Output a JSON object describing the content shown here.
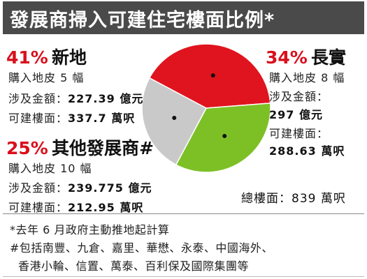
{
  "title": "發展商掃入可建住宅樓面比例*",
  "colors": {
    "header_bg": "#4a4a4a",
    "accent_red": "#d9101c",
    "slice_sun_hung_kai": "#e0141e",
    "slice_cheung_kong": "#7dc026",
    "slice_others": "#c9c9c9"
  },
  "chart_data": {
    "type": "pie",
    "slices": [
      {
        "label": "新地",
        "value": 41,
        "color": "#e0141e"
      },
      {
        "label": "長實",
        "value": 34,
        "color": "#7dc026"
      },
      {
        "label": "其他發展商#",
        "value": 25,
        "color": "#c9c9c9"
      }
    ]
  },
  "groups": {
    "shk": {
      "pct": "41%",
      "name": "新地",
      "sites": "購入地皮 5 幅",
      "amount_label": "涉及金額：",
      "amount_value": "227.39 億元",
      "gfa_label": "可建樓面：",
      "gfa_value": "337.7 萬呎"
    },
    "ck": {
      "pct": "34%",
      "name": "長實",
      "sites": "購入地皮 8 幅",
      "amount_label": "涉及金額：",
      "amount_value": "297 億元",
      "gfa_label": "可建樓面：",
      "gfa_value": "288.63 萬呎"
    },
    "others": {
      "pct": "25%",
      "name": "其他發展商#",
      "sites": "購入地皮 10 幅",
      "amount_label": "涉及金額：",
      "amount_value": "239.775 億元",
      "gfa_label": "可建樓面：",
      "gfa_value": "212.95 萬呎"
    }
  },
  "total": "總樓面：839 萬呎",
  "notes": {
    "line1": "*去年 6 月政府主動推地起計算",
    "line2": "#包括南豐、九倉、嘉里、華懋、永泰、中國海外、",
    "line3": "香港小輪、信置、萬泰、百利保及國際集團等"
  }
}
